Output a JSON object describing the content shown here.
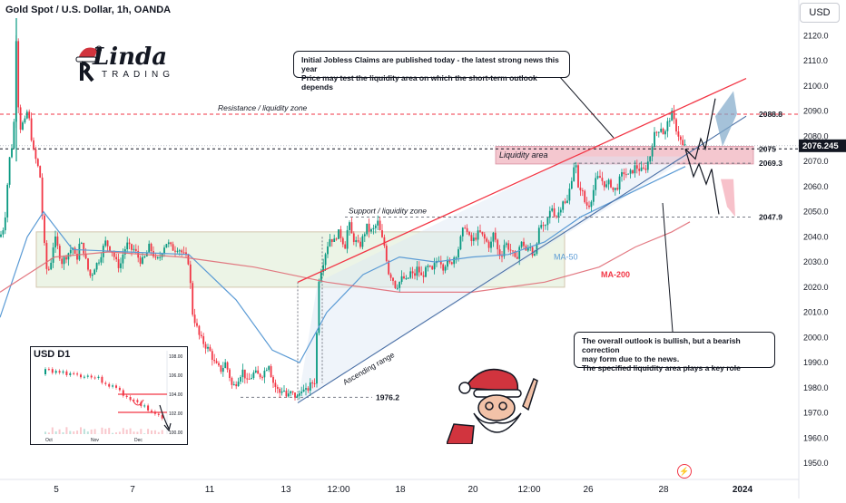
{
  "header": {
    "title": "Gold Spot / U.S. Dollar, 1h, OANDA",
    "currency_button": "USD"
  },
  "logo": {
    "main": "Linda",
    "sub": "TRADING"
  },
  "callouts": {
    "top": "Initial Jobless Claims are published today - the latest strong news this year\nPrice may test the liquidity area on which the short-term outlook depends",
    "bottom": "The overall outlook is bullish, but a bearish correction\nmay form due to the news.\nThe specified liquidity area plays a key role"
  },
  "annotations": {
    "resistance": "Resistance / liquidity zone",
    "support": "Support / liquidity zone",
    "liquidity": "Liquidity area",
    "ascending": "Ascending range",
    "ma50": "MA-50",
    "ma200": "MA-200",
    "lvl_2088": "2088.8",
    "lvl_2075": "2075",
    "lvl_2069": "2069.3",
    "lvl_2047": "2047.9",
    "lvl_1976": "1976.2",
    "current_price": "2076.245"
  },
  "inset": {
    "title": "USD D1",
    "x_labels": [
      "Oct",
      "Nov",
      "Dec"
    ],
    "y_labels": [
      "108.00",
      "106.00",
      "104.00",
      "102.00",
      "100.00"
    ]
  },
  "colors": {
    "up": "#089981",
    "down": "#f23645",
    "ma50": "#5b9bd5",
    "ma200": "#e06c75",
    "resistance": "#f23645",
    "liquidity_fill": "#f4c7cf",
    "zone_fill": "#e8f2e0",
    "arrow_up": "#7fa8c9",
    "arrow_down": "#f4a6b3"
  },
  "chart_data": {
    "type": "candlestick",
    "title": "Gold Spot / U.S. Dollar, 1h, OANDA",
    "x_ticks": [
      "5",
      "7",
      "11",
      "13",
      "12:00",
      "18",
      "20",
      "12:00",
      "26",
      "28",
      "2024"
    ],
    "y_ticks": [
      2120,
      2110,
      2100,
      2090,
      2080,
      2070,
      2060,
      2050,
      2040,
      2030,
      2020,
      2010,
      2000,
      1990,
      1980,
      1970,
      1960,
      1950
    ],
    "y_range": [
      1945,
      2127
    ],
    "grid": false,
    "key_levels": [
      2088.8,
      2075,
      2069.3,
      2047.9,
      1976.2
    ],
    "current_price": 2076.245,
    "price_path": [
      [
        0,
        2040
      ],
      [
        5,
        2045
      ],
      [
        10,
        2070
      ],
      [
        15,
        2080
      ],
      [
        18,
        2122
      ],
      [
        21,
        2082
      ],
      [
        24,
        2085
      ],
      [
        27,
        2085
      ],
      [
        30,
        2090
      ],
      [
        33,
        2085
      ],
      [
        36,
        2075
      ],
      [
        40,
        2070
      ],
      [
        44,
        2065
      ],
      [
        48,
        2040
      ],
      [
        52,
        2025
      ],
      [
        56,
        2030
      ],
      [
        60,
        2040
      ],
      [
        64,
        2035
      ],
      [
        68,
        2030
      ],
      [
        72,
        2032
      ],
      [
        76,
        2034
      ],
      [
        80,
        2036
      ],
      [
        84,
        2030
      ],
      [
        88,
        2038
      ],
      [
        92,
        2035
      ],
      [
        96,
        2028
      ],
      [
        100,
        2024
      ],
      [
        104,
        2028
      ],
      [
        108,
        2030
      ],
      [
        112,
        2034
      ],
      [
        116,
        2038
      ],
      [
        120,
        2036
      ],
      [
        124,
        2034
      ],
      [
        128,
        2030
      ],
      [
        132,
        2028
      ],
      [
        136,
        2034
      ],
      [
        140,
        2037
      ],
      [
        144,
        2035
      ],
      [
        148,
        2035
      ],
      [
        152,
        2032
      ],
      [
        156,
        2030
      ],
      [
        160,
        2032
      ],
      [
        164,
        2036
      ],
      [
        168,
        2034
      ],
      [
        172,
        2030
      ],
      [
        176,
        2032
      ],
      [
        180,
        2036
      ],
      [
        184,
        2038
      ],
      [
        188,
        2036
      ],
      [
        192,
        2035
      ],
      [
        196,
        2036
      ],
      [
        200,
        2034
      ],
      [
        204,
        2032
      ],
      [
        208,
        2030
      ],
      [
        212,
        2010
      ],
      [
        216,
        2005
      ],
      [
        220,
        2000
      ],
      [
        224,
        1998
      ],
      [
        228,
        1996
      ],
      [
        232,
        1994
      ],
      [
        236,
        1990
      ],
      [
        240,
        1988
      ],
      [
        244,
        1987
      ],
      [
        248,
        1990
      ],
      [
        252,
        1986
      ],
      [
        256,
        1980
      ],
      [
        260,
        1982
      ],
      [
        264,
        1985
      ],
      [
        268,
        1987
      ],
      [
        272,
        1982
      ],
      [
        276,
        1984
      ],
      [
        280,
        1986
      ],
      [
        284,
        1985
      ],
      [
        288,
        1985
      ],
      [
        292,
        1987
      ],
      [
        296,
        1990
      ],
      [
        300,
        1983
      ],
      [
        304,
        1980
      ],
      [
        308,
        1978
      ],
      [
        312,
        1980
      ],
      [
        316,
        1976
      ],
      [
        320,
        1978
      ],
      [
        324,
        1977
      ],
      [
        328,
        1976
      ],
      [
        332,
        1980
      ],
      [
        336,
        1978
      ],
      [
        340,
        1980
      ],
      [
        344,
        1982
      ],
      [
        348,
        1983
      ],
      [
        350,
        2020
      ],
      [
        352,
        2025
      ],
      [
        356,
        2030
      ],
      [
        360,
        2036
      ],
      [
        364,
        2040
      ],
      [
        368,
        2038
      ],
      [
        372,
        2042
      ],
      [
        376,
        2040
      ],
      [
        380,
        2036
      ],
      [
        384,
        2046
      ],
      [
        388,
        2040
      ],
      [
        392,
        2038
      ],
      [
        396,
        2036
      ],
      [
        400,
        2040
      ],
      [
        404,
        2044
      ],
      [
        408,
        2042
      ],
      [
        412,
        2043
      ],
      [
        416,
        2046
      ],
      [
        420,
        2040
      ],
      [
        424,
        2036
      ],
      [
        428,
        2026
      ],
      [
        432,
        2024
      ],
      [
        436,
        2020
      ],
      [
        440,
        2022
      ],
      [
        444,
        2024
      ],
      [
        448,
        2022
      ],
      [
        452,
        2026
      ],
      [
        456,
        2024
      ],
      [
        460,
        2028
      ],
      [
        464,
        2024
      ],
      [
        468,
        2026
      ],
      [
        472,
        2028
      ],
      [
        476,
        2026
      ],
      [
        480,
        2030
      ],
      [
        484,
        2032
      ],
      [
        488,
        2028
      ],
      [
        492,
        2030
      ],
      [
        496,
        2029
      ],
      [
        500,
        2032
      ],
      [
        504,
        2034
      ],
      [
        508,
        2040
      ],
      [
        512,
        2045
      ],
      [
        516,
        2040
      ],
      [
        520,
        2038
      ],
      [
        524,
        2040
      ],
      [
        528,
        2042
      ],
      [
        532,
        2040
      ],
      [
        536,
        2038
      ],
      [
        540,
        2036
      ],
      [
        544,
        2042
      ],
      [
        548,
        2035
      ],
      [
        552,
        2032
      ],
      [
        556,
        2038
      ],
      [
        560,
        2036
      ],
      [
        564,
        2034
      ],
      [
        568,
        2030
      ],
      [
        572,
        2036
      ],
      [
        576,
        2038
      ],
      [
        580,
        2034
      ],
      [
        584,
        2036
      ],
      [
        588,
        2032
      ],
      [
        592,
        2040
      ],
      [
        596,
        2045
      ],
      [
        600,
        2042
      ],
      [
        604,
        2048
      ],
      [
        608,
        2052
      ],
      [
        612,
        2048
      ],
      [
        616,
        2050
      ],
      [
        620,
        2055
      ],
      [
        624,
        2052
      ],
      [
        628,
        2060
      ],
      [
        632,
        2068
      ],
      [
        634,
        2072
      ],
      [
        636,
        2058
      ],
      [
        640,
        2060
      ],
      [
        644,
        2054
      ],
      [
        648,
        2052
      ],
      [
        652,
        2056
      ],
      [
        656,
        2062
      ],
      [
        660,
        2064
      ],
      [
        664,
        2062
      ],
      [
        668,
        2060
      ],
      [
        672,
        2062
      ],
      [
        676,
        2058
      ],
      [
        680,
        2060
      ],
      [
        684,
        2064
      ],
      [
        688,
        2066
      ],
      [
        692,
        2064
      ],
      [
        696,
        2066
      ],
      [
        700,
        2068
      ],
      [
        704,
        2067
      ],
      [
        708,
        2066
      ],
      [
        712,
        2068
      ],
      [
        716,
        2072
      ],
      [
        720,
        2080
      ],
      [
        724,
        2082
      ],
      [
        728,
        2084
      ],
      [
        732,
        2080
      ],
      [
        736,
        2086
      ],
      [
        740,
        2089
      ],
      [
        744,
        2084
      ],
      [
        748,
        2080
      ],
      [
        752,
        2076
      ],
      [
        755,
        2076
      ]
    ],
    "ma50": [
      [
        0,
        2008
      ],
      [
        30,
        2040
      ],
      [
        48,
        2050
      ],
      [
        80,
        2035
      ],
      [
        140,
        2034
      ],
      [
        208,
        2033
      ],
      [
        260,
        2015
      ],
      [
        300,
        1995
      ],
      [
        330,
        1990
      ],
      [
        360,
        2010
      ],
      [
        400,
        2025
      ],
      [
        440,
        2032
      ],
      [
        480,
        2030
      ],
      [
        520,
        2032
      ],
      [
        560,
        2033
      ],
      [
        600,
        2038
      ],
      [
        640,
        2048
      ],
      [
        680,
        2055
      ],
      [
        720,
        2062
      ],
      [
        755,
        2068
      ]
    ],
    "ma200": [
      [
        0,
        2018
      ],
      [
        60,
        2032
      ],
      [
        120,
        2034
      ],
      [
        200,
        2032
      ],
      [
        280,
        2028
      ],
      [
        360,
        2022
      ],
      [
        440,
        2018
      ],
      [
        520,
        2018
      ],
      [
        600,
        2022
      ],
      [
        660,
        2028
      ],
      [
        700,
        2036
      ],
      [
        740,
        2042
      ],
      [
        760,
        2046
      ]
    ]
  }
}
